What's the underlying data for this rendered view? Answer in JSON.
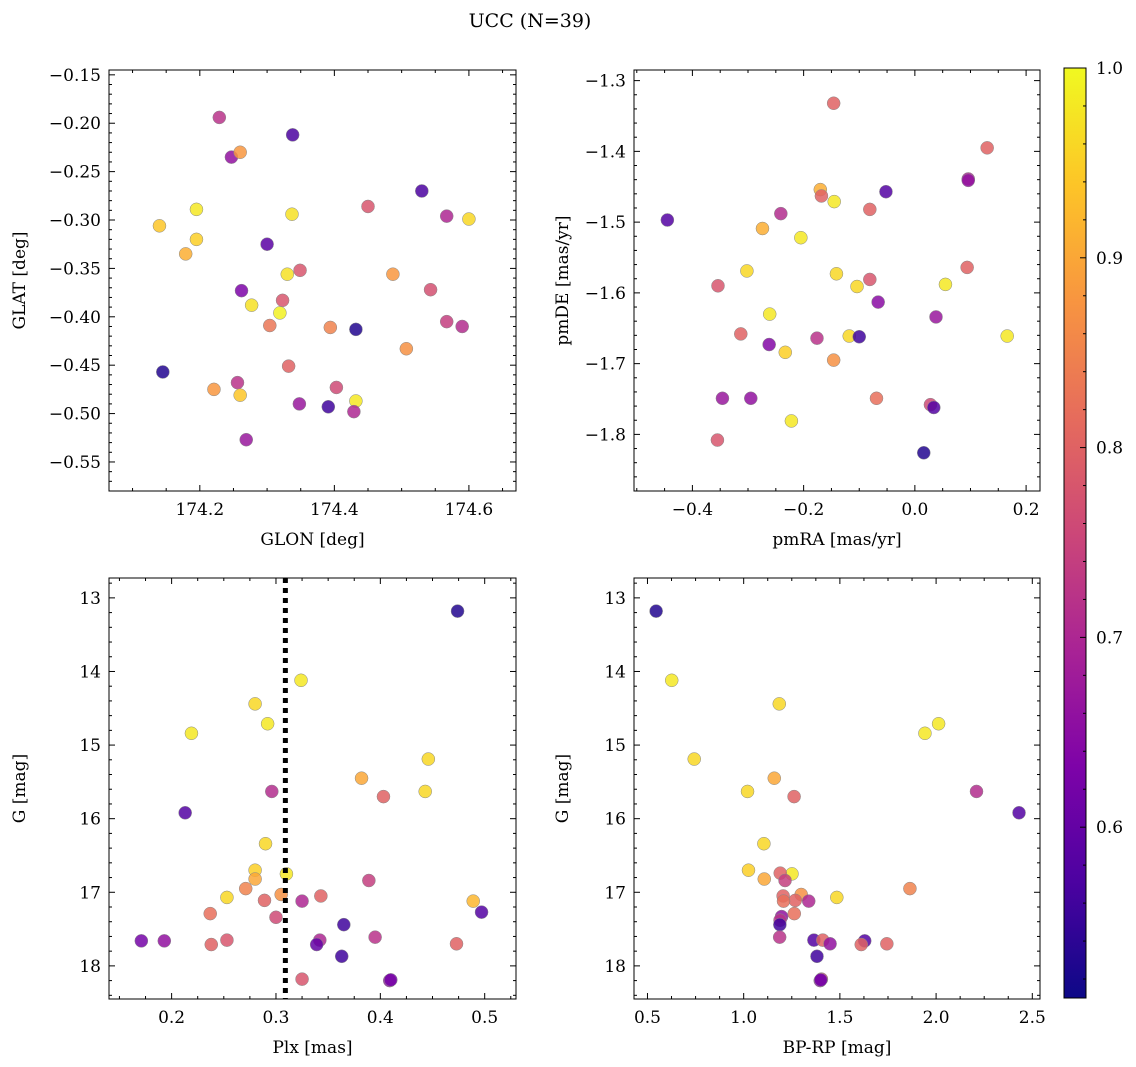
{
  "figure": {
    "title": "UCC (N=39)"
  },
  "colorbar": {
    "colormap": "plasma",
    "vmin": 0.51,
    "vmax": 1.0,
    "ticks": [
      0.6,
      0.7,
      0.8,
      0.9,
      1.0
    ],
    "tick_labels": [
      "0.6",
      "0.7",
      "0.8",
      "0.9",
      "1.0"
    ]
  },
  "chart_data": [
    {
      "type": "scatter",
      "xlabel": "GLON [deg]",
      "ylabel": "GLAT [deg]",
      "xlim": [
        174.065,
        174.67
      ],
      "ylim": [
        -0.58,
        -0.145
      ],
      "y_inverted": false,
      "xticks": [
        174.2,
        174.4,
        174.6
      ],
      "xtick_labels": [
        "174.2",
        "174.4",
        "174.6"
      ],
      "yticks": [
        -0.55,
        -0.5,
        -0.45,
        -0.4,
        -0.35,
        -0.3,
        -0.25,
        -0.2,
        -0.15
      ],
      "ytick_labels": [
        "−0.55",
        "−0.50",
        "−0.45",
        "−0.40",
        "−0.35",
        "−0.30",
        "−0.25",
        "−0.20",
        "−0.15"
      ],
      "points": [
        {
          "x": 174.229,
          "y": -0.194,
          "c": 0.72
        },
        {
          "x": 174.338,
          "y": -0.212,
          "c": 0.57
        },
        {
          "x": 174.247,
          "y": -0.235,
          "c": 0.66
        },
        {
          "x": 174.26,
          "y": -0.23,
          "c": 0.88
        },
        {
          "x": 174.53,
          "y": -0.27,
          "c": 0.57
        },
        {
          "x": 174.45,
          "y": -0.286,
          "c": 0.78
        },
        {
          "x": 174.195,
          "y": -0.289,
          "c": 0.98
        },
        {
          "x": 174.337,
          "y": -0.294,
          "c": 0.97
        },
        {
          "x": 174.567,
          "y": -0.296,
          "c": 0.7
        },
        {
          "x": 174.6,
          "y": -0.299,
          "c": 0.96
        },
        {
          "x": 174.14,
          "y": -0.306,
          "c": 0.94
        },
        {
          "x": 174.195,
          "y": -0.32,
          "c": 0.95
        },
        {
          "x": 174.3,
          "y": -0.325,
          "c": 0.59
        },
        {
          "x": 174.179,
          "y": -0.335,
          "c": 0.91
        },
        {
          "x": 174.349,
          "y": -0.352,
          "c": 0.78
        },
        {
          "x": 174.33,
          "y": -0.356,
          "c": 0.97
        },
        {
          "x": 174.487,
          "y": -0.356,
          "c": 0.88
        },
        {
          "x": 174.262,
          "y": -0.373,
          "c": 0.63
        },
        {
          "x": 174.543,
          "y": -0.372,
          "c": 0.77
        },
        {
          "x": 174.323,
          "y": -0.383,
          "c": 0.78
        },
        {
          "x": 174.277,
          "y": -0.388,
          "c": 0.97
        },
        {
          "x": 174.319,
          "y": -0.396,
          "c": 0.99
        },
        {
          "x": 174.567,
          "y": -0.405,
          "c": 0.74
        },
        {
          "x": 174.59,
          "y": -0.41,
          "c": 0.71
        },
        {
          "x": 174.304,
          "y": -0.409,
          "c": 0.83
        },
        {
          "x": 174.394,
          "y": -0.411,
          "c": 0.85
        },
        {
          "x": 174.432,
          "y": -0.413,
          "c": 0.53
        },
        {
          "x": 174.507,
          "y": -0.433,
          "c": 0.87
        },
        {
          "x": 174.332,
          "y": -0.451,
          "c": 0.8
        },
        {
          "x": 174.145,
          "y": -0.457,
          "c": 0.53
        },
        {
          "x": 174.256,
          "y": -0.468,
          "c": 0.72
        },
        {
          "x": 174.403,
          "y": -0.473,
          "c": 0.76
        },
        {
          "x": 174.221,
          "y": -0.475,
          "c": 0.88
        },
        {
          "x": 174.26,
          "y": -0.481,
          "c": 0.94
        },
        {
          "x": 174.432,
          "y": -0.487,
          "c": 0.98
        },
        {
          "x": 174.348,
          "y": -0.49,
          "c": 0.67
        },
        {
          "x": 174.391,
          "y": -0.493,
          "c": 0.56
        },
        {
          "x": 174.429,
          "y": -0.498,
          "c": 0.7
        },
        {
          "x": 174.269,
          "y": -0.527,
          "c": 0.67
        }
      ]
    },
    {
      "type": "scatter",
      "xlabel": "pmRA [mas/yr]",
      "ylabel": "pmDE [mas/yr]",
      "xlim": [
        -0.505,
        0.225
      ],
      "ylim": [
        -1.88,
        -1.285
      ],
      "y_inverted": false,
      "xticks": [
        -0.4,
        -0.2,
        0.0,
        0.2
      ],
      "xtick_labels": [
        "−0.4",
        "−0.2",
        "0.0",
        "0.2"
      ],
      "yticks": [
        -1.8,
        -1.7,
        -1.6,
        -1.5,
        -1.4,
        -1.3
      ],
      "ytick_labels": [
        "−1.8",
        "−1.7",
        "−1.6",
        "−1.5",
        "−1.4",
        "−1.3"
      ],
      "points": [
        {
          "x": -0.146,
          "y": -1.332,
          "c": 0.8
        },
        {
          "x": 0.13,
          "y": -1.395,
          "c": 0.8
        },
        {
          "x": 0.096,
          "y": -1.439,
          "c": 0.7
        },
        {
          "x": 0.096,
          "y": -1.441,
          "c": 0.66
        },
        {
          "x": -0.17,
          "y": -1.454,
          "c": 0.91
        },
        {
          "x": -0.168,
          "y": -1.463,
          "c": 0.8
        },
        {
          "x": -0.052,
          "y": -1.457,
          "c": 0.58
        },
        {
          "x": -0.145,
          "y": -1.471,
          "c": 0.98
        },
        {
          "x": -0.081,
          "y": -1.482,
          "c": 0.8
        },
        {
          "x": -0.241,
          "y": -1.488,
          "c": 0.71
        },
        {
          "x": -0.445,
          "y": -1.497,
          "c": 0.58
        },
        {
          "x": -0.274,
          "y": -1.509,
          "c": 0.91
        },
        {
          "x": -0.205,
          "y": -1.522,
          "c": 0.98
        },
        {
          "x": 0.094,
          "y": -1.564,
          "c": 0.8
        },
        {
          "x": -0.302,
          "y": -1.569,
          "c": 0.96
        },
        {
          "x": -0.141,
          "y": -1.573,
          "c": 0.96
        },
        {
          "x": -0.081,
          "y": -1.581,
          "c": 0.78
        },
        {
          "x": 0.055,
          "y": -1.588,
          "c": 0.98
        },
        {
          "x": -0.104,
          "y": -1.591,
          "c": 0.96
        },
        {
          "x": -0.354,
          "y": -1.59,
          "c": 0.78
        },
        {
          "x": -0.066,
          "y": -1.613,
          "c": 0.65
        },
        {
          "x": -0.261,
          "y": -1.63,
          "c": 0.98
        },
        {
          "x": 0.038,
          "y": -1.634,
          "c": 0.67
        },
        {
          "x": -0.313,
          "y": -1.658,
          "c": 0.8
        },
        {
          "x": 0.166,
          "y": -1.661,
          "c": 0.98
        },
        {
          "x": -0.118,
          "y": -1.661,
          "c": 0.96
        },
        {
          "x": -0.1,
          "y": -1.662,
          "c": 0.56
        },
        {
          "x": -0.176,
          "y": -1.664,
          "c": 0.72
        },
        {
          "x": -0.262,
          "y": -1.673,
          "c": 0.64
        },
        {
          "x": -0.233,
          "y": -1.684,
          "c": 0.95
        },
        {
          "x": -0.146,
          "y": -1.695,
          "c": 0.87
        },
        {
          "x": -0.346,
          "y": -1.749,
          "c": 0.67
        },
        {
          "x": -0.295,
          "y": -1.749,
          "c": 0.66
        },
        {
          "x": -0.069,
          "y": -1.749,
          "c": 0.82
        },
        {
          "x": 0.028,
          "y": -1.758,
          "c": 0.76
        },
        {
          "x": 0.034,
          "y": -1.762,
          "c": 0.58
        },
        {
          "x": -0.222,
          "y": -1.781,
          "c": 0.98
        },
        {
          "x": -0.355,
          "y": -1.808,
          "c": 0.78
        },
        {
          "x": 0.016,
          "y": -1.826,
          "c": 0.53
        }
      ]
    },
    {
      "type": "scatter",
      "xlabel": "Plx [mas]",
      "ylabel": "G [mag]",
      "xlim": [
        0.14,
        0.53
      ],
      "ylim": [
        18.45,
        12.73
      ],
      "y_inverted": true,
      "xticks": [
        0.2,
        0.3,
        0.4,
        0.5
      ],
      "xtick_labels": [
        "0.2",
        "0.3",
        "0.4",
        "0.5"
      ],
      "yticks": [
        13,
        14,
        15,
        16,
        17,
        18
      ],
      "ytick_labels": [
        "13",
        "14",
        "15",
        "16",
        "17",
        "18"
      ],
      "vline": {
        "x": 0.309,
        "style": "dotted"
      },
      "points": [
        {
          "x": 0.474,
          "y": 13.18,
          "c": 0.53
        },
        {
          "x": 0.324,
          "y": 14.12,
          "c": 0.98
        },
        {
          "x": 0.28,
          "y": 14.44,
          "c": 0.96
        },
        {
          "x": 0.292,
          "y": 14.71,
          "c": 0.98
        },
        {
          "x": 0.219,
          "y": 14.84,
          "c": 0.98
        },
        {
          "x": 0.446,
          "y": 15.19,
          "c": 0.96
        },
        {
          "x": 0.382,
          "y": 15.45,
          "c": 0.9
        },
        {
          "x": 0.443,
          "y": 15.63,
          "c": 0.96
        },
        {
          "x": 0.296,
          "y": 15.63,
          "c": 0.71
        },
        {
          "x": 0.403,
          "y": 15.7,
          "c": 0.8
        },
        {
          "x": 0.213,
          "y": 15.92,
          "c": 0.58
        },
        {
          "x": 0.29,
          "y": 16.34,
          "c": 0.96
        },
        {
          "x": 0.28,
          "y": 16.7,
          "c": 0.95
        },
        {
          "x": 0.31,
          "y": 16.75,
          "c": 0.98
        },
        {
          "x": 0.28,
          "y": 16.82,
          "c": 0.9
        },
        {
          "x": 0.389,
          "y": 16.84,
          "c": 0.74
        },
        {
          "x": 0.271,
          "y": 16.95,
          "c": 0.85
        },
        {
          "x": 0.305,
          "y": 17.03,
          "c": 0.87
        },
        {
          "x": 0.343,
          "y": 17.05,
          "c": 0.8
        },
        {
          "x": 0.253,
          "y": 17.07,
          "c": 0.96
        },
        {
          "x": 0.289,
          "y": 17.11,
          "c": 0.8
        },
        {
          "x": 0.325,
          "y": 17.12,
          "c": 0.7
        },
        {
          "x": 0.489,
          "y": 17.12,
          "c": 0.92
        },
        {
          "x": 0.497,
          "y": 17.27,
          "c": 0.58
        },
        {
          "x": 0.237,
          "y": 17.29,
          "c": 0.82
        },
        {
          "x": 0.3,
          "y": 17.34,
          "c": 0.76
        },
        {
          "x": 0.365,
          "y": 17.44,
          "c": 0.56
        },
        {
          "x": 0.395,
          "y": 17.61,
          "c": 0.72
        },
        {
          "x": 0.342,
          "y": 17.65,
          "c": 0.7
        },
        {
          "x": 0.253,
          "y": 17.65,
          "c": 0.78
        },
        {
          "x": 0.171,
          "y": 17.66,
          "c": 0.62
        },
        {
          "x": 0.193,
          "y": 17.66,
          "c": 0.66
        },
        {
          "x": 0.339,
          "y": 17.71,
          "c": 0.6
        },
        {
          "x": 0.238,
          "y": 17.71,
          "c": 0.8
        },
        {
          "x": 0.473,
          "y": 17.7,
          "c": 0.8
        },
        {
          "x": 0.363,
          "y": 17.87,
          "c": 0.56
        },
        {
          "x": 0.325,
          "y": 18.18,
          "c": 0.78
        },
        {
          "x": 0.409,
          "y": 18.2,
          "c": 0.66
        },
        {
          "x": 0.41,
          "y": 18.19,
          "c": 0.62
        }
      ]
    },
    {
      "type": "scatter",
      "xlabel": "BP-RP [mag]",
      "ylabel": "G [mag]",
      "xlim": [
        0.43,
        2.54
      ],
      "ylim": [
        18.45,
        12.73
      ],
      "y_inverted": true,
      "xticks": [
        0.5,
        1.0,
        1.5,
        2.0,
        2.5
      ],
      "xtick_labels": [
        "0.5",
        "1.0",
        "1.5",
        "2.0",
        "2.5"
      ],
      "yticks": [
        13,
        14,
        15,
        16,
        17,
        18
      ],
      "ytick_labels": [
        "13",
        "14",
        "15",
        "16",
        "17",
        "18"
      ],
      "points": [
        {
          "x": 0.545,
          "y": 13.18,
          "c": 0.53
        },
        {
          "x": 0.626,
          "y": 14.12,
          "c": 0.98
        },
        {
          "x": 1.185,
          "y": 14.44,
          "c": 0.96
        },
        {
          "x": 2.013,
          "y": 14.71,
          "c": 0.98
        },
        {
          "x": 1.942,
          "y": 14.84,
          "c": 0.98
        },
        {
          "x": 0.743,
          "y": 15.19,
          "c": 0.96
        },
        {
          "x": 1.159,
          "y": 15.45,
          "c": 0.9
        },
        {
          "x": 1.02,
          "y": 15.63,
          "c": 0.96
        },
        {
          "x": 2.21,
          "y": 15.63,
          "c": 0.71
        },
        {
          "x": 1.262,
          "y": 15.7,
          "c": 0.8
        },
        {
          "x": 2.431,
          "y": 15.92,
          "c": 0.58
        },
        {
          "x": 1.105,
          "y": 16.34,
          "c": 0.96
        },
        {
          "x": 1.025,
          "y": 16.7,
          "c": 0.95
        },
        {
          "x": 1.251,
          "y": 16.75,
          "c": 0.98
        },
        {
          "x": 1.19,
          "y": 16.74,
          "c": 0.8
        },
        {
          "x": 1.107,
          "y": 16.82,
          "c": 0.9
        },
        {
          "x": 1.215,
          "y": 16.84,
          "c": 0.74
        },
        {
          "x": 1.864,
          "y": 16.95,
          "c": 0.85
        },
        {
          "x": 1.299,
          "y": 17.03,
          "c": 0.87
        },
        {
          "x": 1.484,
          "y": 17.07,
          "c": 0.96
        },
        {
          "x": 1.205,
          "y": 17.05,
          "c": 0.8
        },
        {
          "x": 1.268,
          "y": 17.11,
          "c": 0.8
        },
        {
          "x": 1.207,
          "y": 17.12,
          "c": 0.82
        },
        {
          "x": 1.338,
          "y": 17.12,
          "c": 0.7
        },
        {
          "x": 1.263,
          "y": 17.29,
          "c": 0.82
        },
        {
          "x": 1.197,
          "y": 17.33,
          "c": 0.66
        },
        {
          "x": 1.189,
          "y": 17.38,
          "c": 0.72
        },
        {
          "x": 1.188,
          "y": 17.44,
          "c": 0.56
        },
        {
          "x": 1.187,
          "y": 17.61,
          "c": 0.72
        },
        {
          "x": 1.365,
          "y": 17.65,
          "c": 0.58
        },
        {
          "x": 1.411,
          "y": 17.65,
          "c": 0.8
        },
        {
          "x": 1.629,
          "y": 17.66,
          "c": 0.58
        },
        {
          "x": 1.611,
          "y": 17.71,
          "c": 0.8
        },
        {
          "x": 1.449,
          "y": 17.7,
          "c": 0.66
        },
        {
          "x": 1.744,
          "y": 17.7,
          "c": 0.8
        },
        {
          "x": 1.381,
          "y": 17.87,
          "c": 0.56
        },
        {
          "x": 1.404,
          "y": 18.18,
          "c": 0.78
        },
        {
          "x": 1.398,
          "y": 18.2,
          "c": 0.66
        },
        {
          "x": 1.401,
          "y": 18.19,
          "c": 0.62
        }
      ]
    }
  ]
}
